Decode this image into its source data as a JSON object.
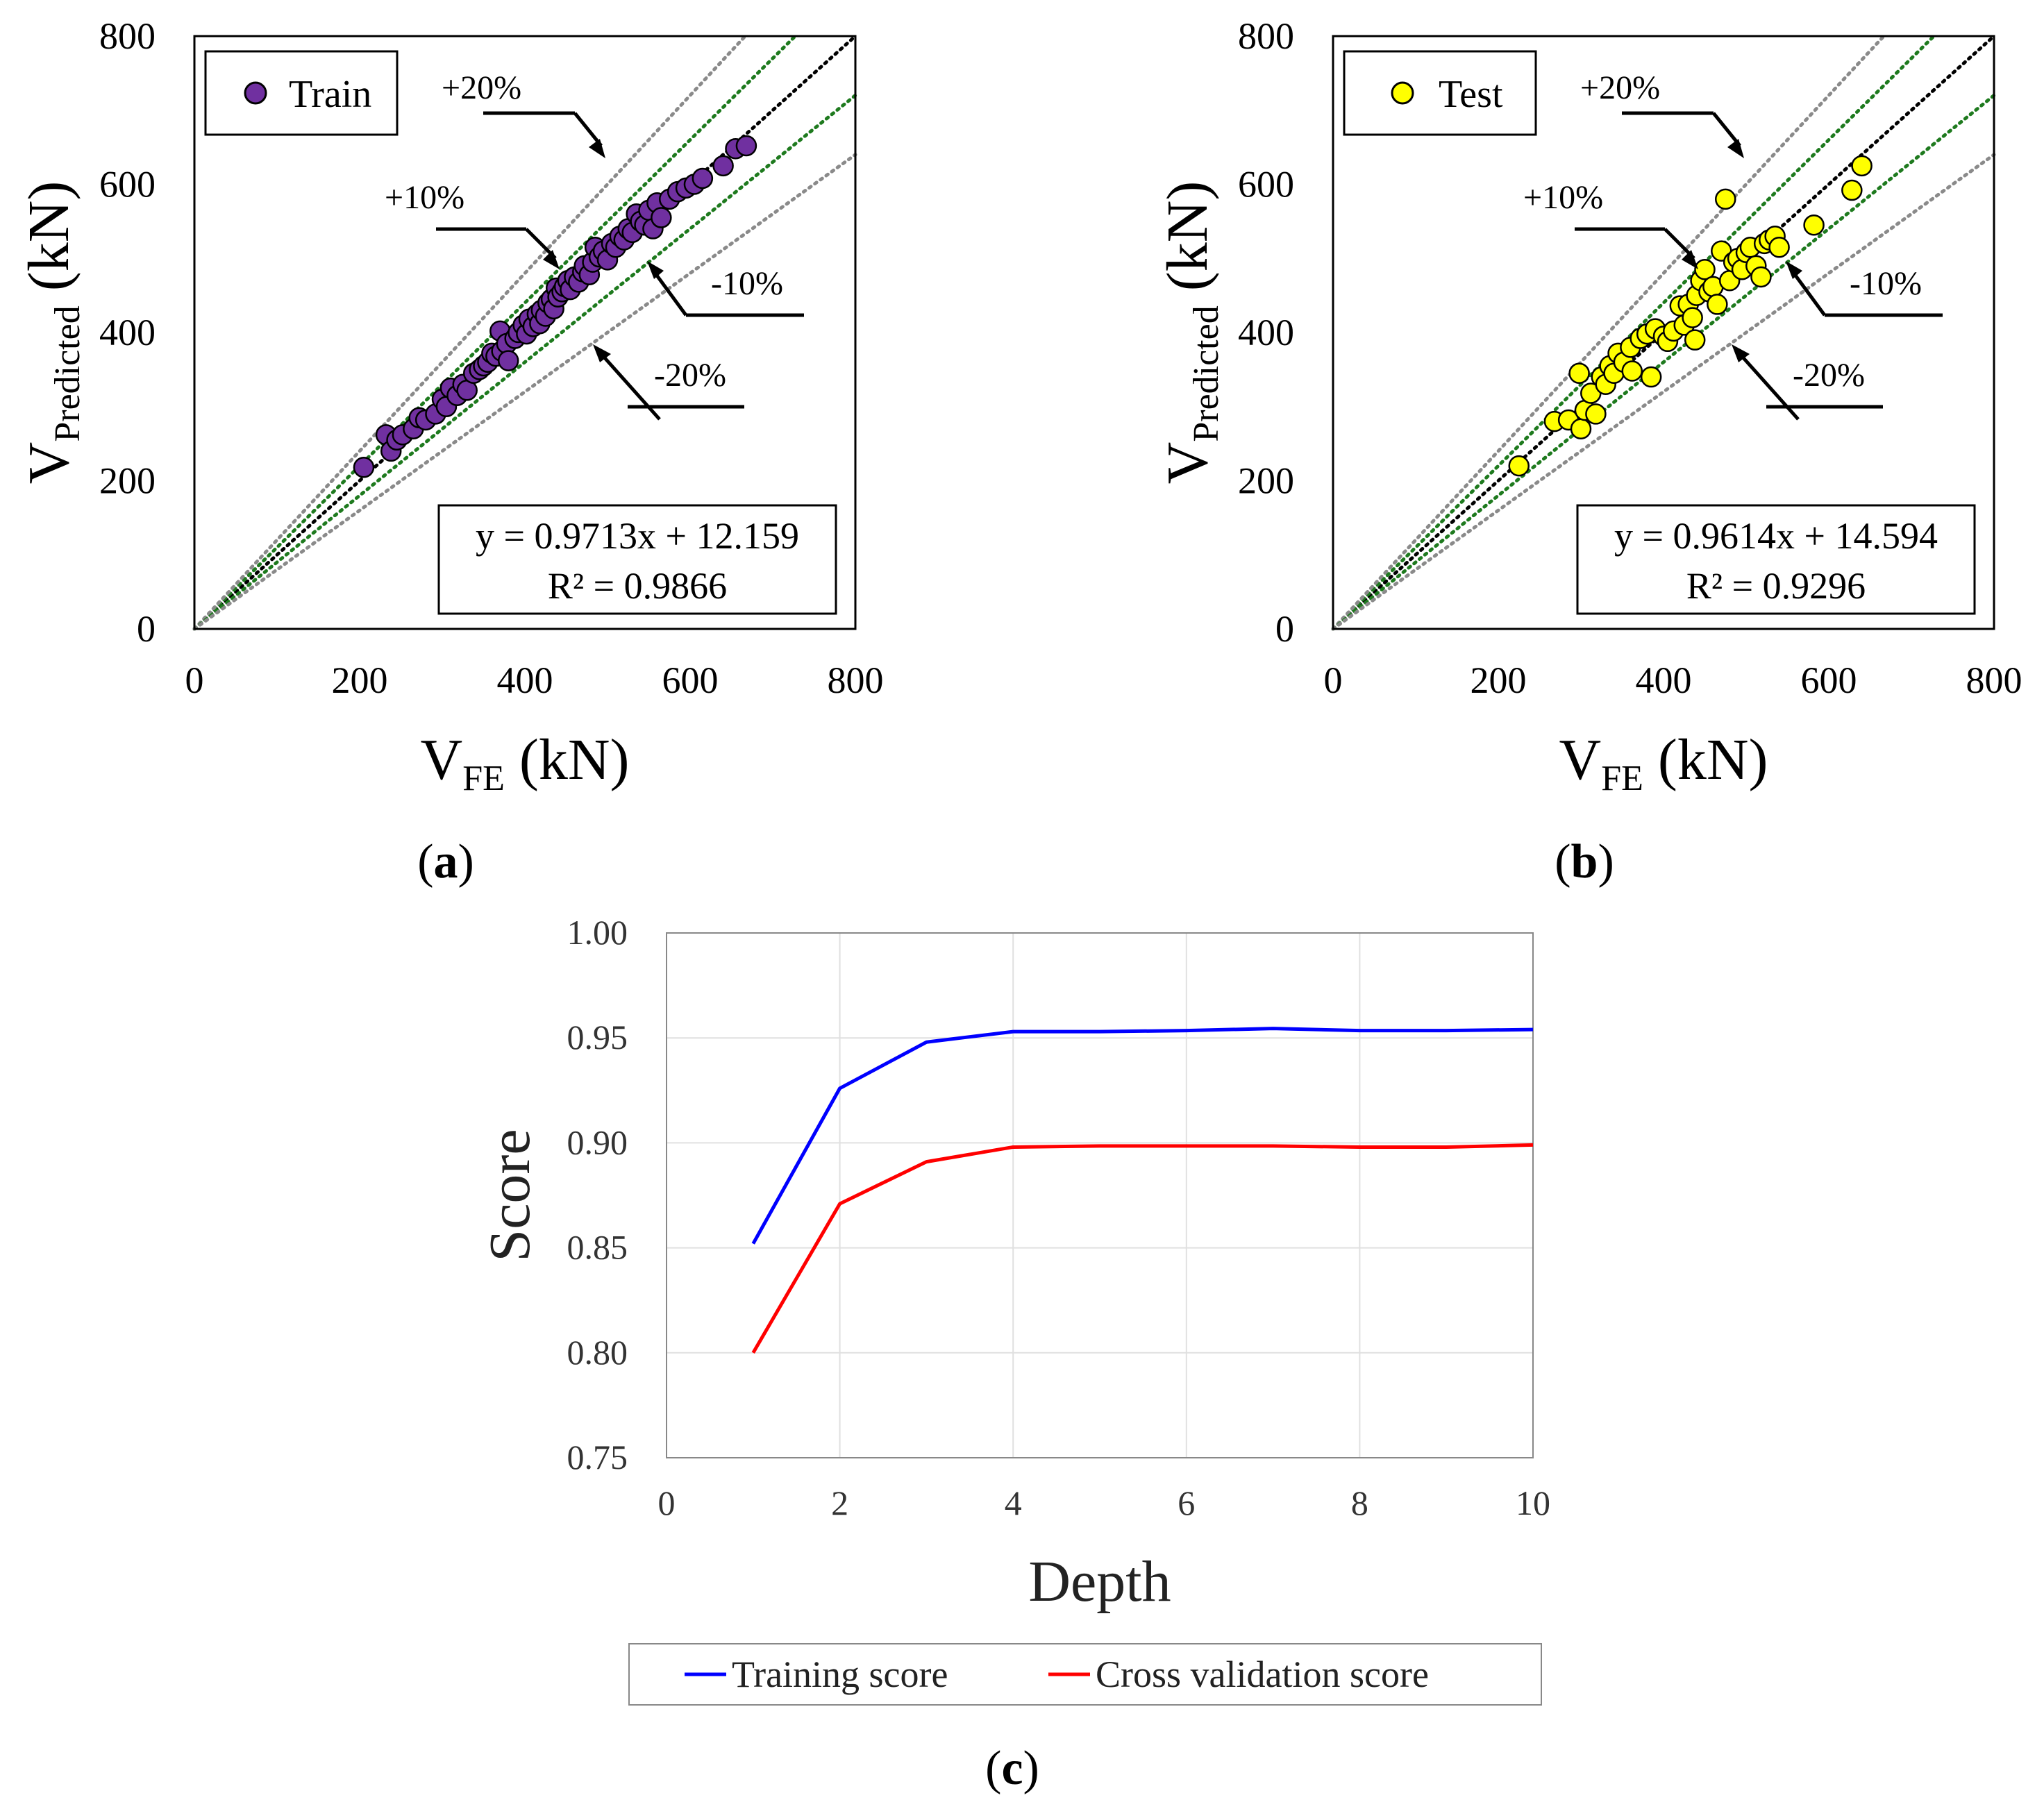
{
  "chart_data": [
    {
      "id": "a",
      "type": "scatter",
      "panel_label": "a",
      "xlabel_main": "V",
      "xlabel_sub": "FE",
      "xlabel_unit": " (kN)",
      "ylabel_main": "V",
      "ylabel_sub": "Predicted",
      "ylabel_unit": " (kN)",
      "xlim": [
        0,
        800
      ],
      "ylim": [
        0,
        800
      ],
      "xticks": [
        "0",
        "200",
        "400",
        "600",
        "800"
      ],
      "yticks": [
        "0",
        "200",
        "400",
        "600",
        "800"
      ],
      "legend": {
        "label": "Train",
        "position": "top-left"
      },
      "marker_color": "#7030A0",
      "equation": "y = 0.9713x + 12.159",
      "r2": "R² = 0.9866",
      "annotations": {
        "p20": "+20%",
        "p10": "+10%",
        "m10": "-10%",
        "m20": "-20%"
      },
      "reference_lines": [
        1.0,
        1.1,
        1.2,
        0.9,
        0.8
      ],
      "points": [
        [
          205,
          218
        ],
        [
          232,
          262
        ],
        [
          238,
          240
        ],
        [
          245,
          255
        ],
        [
          252,
          262
        ],
        [
          265,
          270
        ],
        [
          272,
          285
        ],
        [
          280,
          282
        ],
        [
          292,
          290
        ],
        [
          300,
          310
        ],
        [
          305,
          300
        ],
        [
          310,
          325
        ],
        [
          318,
          315
        ],
        [
          325,
          330
        ],
        [
          330,
          322
        ],
        [
          338,
          345
        ],
        [
          345,
          350
        ],
        [
          350,
          355
        ],
        [
          355,
          360
        ],
        [
          360,
          372
        ],
        [
          365,
          368
        ],
        [
          370,
          402
        ],
        [
          372,
          375
        ],
        [
          378,
          385
        ],
        [
          380,
          362
        ],
        [
          388,
          392
        ],
        [
          392,
          400
        ],
        [
          398,
          410
        ],
        [
          402,
          398
        ],
        [
          405,
          418
        ],
        [
          410,
          408
        ],
        [
          415,
          425
        ],
        [
          418,
          412
        ],
        [
          420,
          430
        ],
        [
          425,
          422
        ],
        [
          428,
          440
        ],
        [
          432,
          445
        ],
        [
          435,
          432
        ],
        [
          438,
          460
        ],
        [
          440,
          448
        ],
        [
          445,
          455
        ],
        [
          448,
          462
        ],
        [
          452,
          470
        ],
        [
          455,
          458
        ],
        [
          460,
          475
        ],
        [
          465,
          468
        ],
        [
          470,
          482
        ],
        [
          472,
          490
        ],
        [
          478,
          478
        ],
        [
          482,
          495
        ],
        [
          485,
          515
        ],
        [
          490,
          502
        ],
        [
          495,
          510
        ],
        [
          500,
          498
        ],
        [
          505,
          520
        ],
        [
          510,
          515
        ],
        [
          515,
          530
        ],
        [
          520,
          525
        ],
        [
          525,
          540
        ],
        [
          530,
          535
        ],
        [
          535,
          560
        ],
        [
          540,
          550
        ],
        [
          545,
          545
        ],
        [
          550,
          565
        ],
        [
          555,
          540
        ],
        [
          560,
          575
        ],
        [
          565,
          555
        ],
        [
          575,
          580
        ],
        [
          585,
          590
        ],
        [
          595,
          595
        ],
        [
          605,
          600
        ],
        [
          615,
          608
        ],
        [
          640,
          625
        ],
        [
          655,
          648
        ],
        [
          668,
          652
        ]
      ]
    },
    {
      "id": "b",
      "type": "scatter",
      "panel_label": "b",
      "xlabel_main": "V",
      "xlabel_sub": "FE",
      "xlabel_unit": " (kN)",
      "ylabel_main": "V",
      "ylabel_sub": "Predicted",
      "ylabel_unit": " (kN)",
      "xlim": [
        0,
        800
      ],
      "ylim": [
        0,
        800
      ],
      "xticks": [
        "0",
        "200",
        "400",
        "600",
        "800"
      ],
      "yticks": [
        "0",
        "200",
        "400",
        "600",
        "800"
      ],
      "legend": {
        "label": "Test",
        "position": "top-left"
      },
      "marker_color": "#FFFF00",
      "equation": "y = 0.9614x + 14.594",
      "r2": "R² = 0.9296",
      "annotations": {
        "p20": "+20%",
        "p10": "+10%",
        "m10": "-10%",
        "m20": "-20%"
      },
      "reference_lines": [
        1.0,
        1.1,
        1.2,
        0.9,
        0.8
      ],
      "points": [
        [
          225,
          220
        ],
        [
          268,
          280
        ],
        [
          285,
          282
        ],
        [
          298,
          345
        ],
        [
          300,
          270
        ],
        [
          305,
          295
        ],
        [
          312,
          318
        ],
        [
          318,
          290
        ],
        [
          325,
          340
        ],
        [
          330,
          330
        ],
        [
          335,
          355
        ],
        [
          340,
          345
        ],
        [
          345,
          372
        ],
        [
          352,
          360
        ],
        [
          360,
          380
        ],
        [
          362,
          348
        ],
        [
          372,
          392
        ],
        [
          380,
          398
        ],
        [
          385,
          340
        ],
        [
          390,
          405
        ],
        [
          400,
          395
        ],
        [
          405,
          388
        ],
        [
          412,
          402
        ],
        [
          420,
          436
        ],
        [
          425,
          410
        ],
        [
          430,
          438
        ],
        [
          435,
          420
        ],
        [
          438,
          390
        ],
        [
          440,
          450
        ],
        [
          445,
          470
        ],
        [
          450,
          485
        ],
        [
          455,
          455
        ],
        [
          460,
          462
        ],
        [
          465,
          438
        ],
        [
          470,
          510
        ],
        [
          475,
          580
        ],
        [
          480,
          470
        ],
        [
          485,
          495
        ],
        [
          490,
          500
        ],
        [
          495,
          485
        ],
        [
          500,
          508
        ],
        [
          505,
          515
        ],
        [
          512,
          490
        ],
        [
          518,
          475
        ],
        [
          522,
          520
        ],
        [
          528,
          525
        ],
        [
          535,
          530
        ],
        [
          540,
          515
        ],
        [
          582,
          545
        ],
        [
          628,
          592
        ],
        [
          640,
          625
        ]
      ]
    },
    {
      "id": "c",
      "type": "line",
      "panel_label": "c",
      "xlabel": "Depth",
      "ylabel": "Score",
      "xlim": [
        0,
        10
      ],
      "ylim": [
        0.75,
        1.0
      ],
      "xticks": [
        "0",
        "2",
        "4",
        "6",
        "8",
        "10"
      ],
      "yticks": [
        "1.00",
        "0.95",
        "0.90",
        "0.85",
        "0.80",
        "0.75"
      ],
      "grid": true,
      "legend_position": "bottom",
      "x": [
        1,
        2,
        3,
        4,
        5,
        6,
        7,
        8,
        9,
        10
      ],
      "series": [
        {
          "name": "Training score",
          "color": "#0000FF",
          "values": [
            0.852,
            0.926,
            0.948,
            0.953,
            0.953,
            0.9535,
            0.9545,
            0.9535,
            0.9535,
            0.954
          ]
        },
        {
          "name": "Cross validation score",
          "color": "#FF0000",
          "values": [
            0.8,
            0.871,
            0.891,
            0.898,
            0.8985,
            0.8985,
            0.8985,
            0.898,
            0.898,
            0.899
          ]
        }
      ]
    }
  ]
}
